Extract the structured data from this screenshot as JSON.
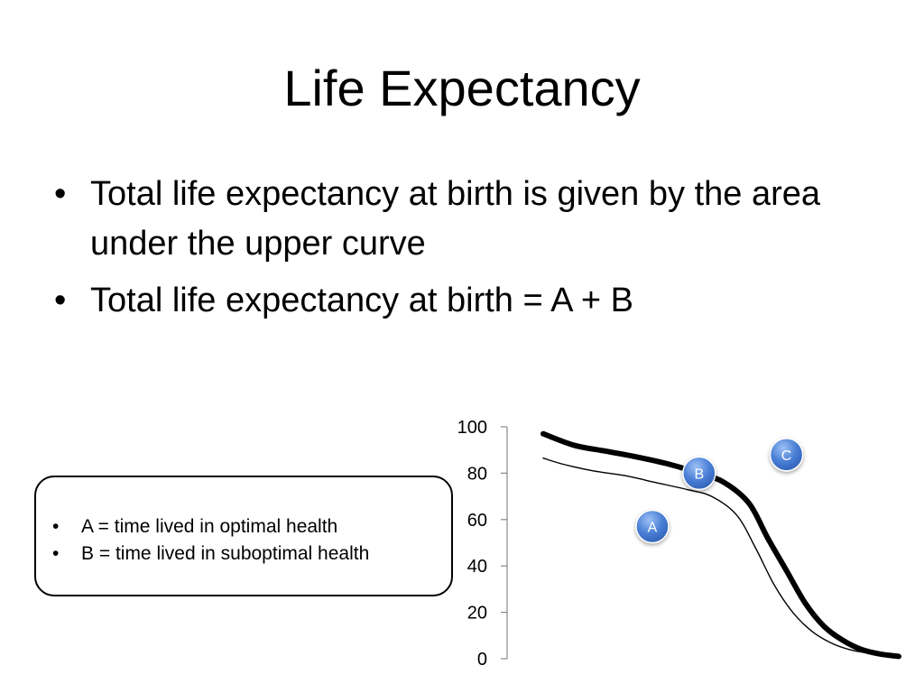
{
  "title": "Life Expectancy",
  "bullets": [
    {
      "marker": "•",
      "text": "Total life expectancy at birth is given by the area under the upper curve"
    },
    {
      "marker": "•",
      "text": "Total life expectancy at birth = A + B"
    }
  ],
  "legend_box": [
    {
      "marker": "•",
      "text": "A = time lived in optimal health"
    },
    {
      "marker": "•",
      "text": "B = time lived in suboptimal health"
    }
  ],
  "chart_data": {
    "type": "line",
    "ylim": [
      0,
      100
    ],
    "y_ticks": [
      "0",
      "20",
      "40",
      "60",
      "80",
      "100"
    ],
    "x_axis": "unlabeled",
    "grid": false,
    "series": [
      {
        "style": "thick",
        "points": [
          [
            0,
            97
          ],
          [
            5,
            92
          ],
          [
            10,
            89.5
          ],
          [
            15,
            87
          ],
          [
            20,
            84
          ],
          [
            25,
            80
          ],
          [
            29,
            76
          ],
          [
            33,
            67
          ],
          [
            36,
            52
          ],
          [
            39,
            38
          ],
          [
            42,
            24
          ],
          [
            45,
            14
          ],
          [
            48,
            8
          ],
          [
            51,
            4
          ],
          [
            54,
            2
          ],
          [
            57,
            1
          ]
        ]
      },
      {
        "style": "thin",
        "points": [
          [
            0,
            86.5
          ],
          [
            3,
            84
          ],
          [
            8,
            81
          ],
          [
            13,
            79
          ],
          [
            18,
            76
          ],
          [
            23,
            73
          ],
          [
            27,
            70
          ],
          [
            31,
            62
          ],
          [
            34,
            48
          ],
          [
            37,
            32
          ],
          [
            40,
            20
          ],
          [
            43,
            12
          ],
          [
            46,
            7
          ],
          [
            49,
            4
          ],
          [
            52,
            2.5
          ],
          [
            55,
            1.8
          ]
        ]
      }
    ],
    "regions": [
      {
        "label": "A",
        "x": 17.5,
        "y": 57
      },
      {
        "label": "B",
        "x": 25,
        "y": 80
      },
      {
        "label": "C",
        "x": 39,
        "y": 88
      }
    ],
    "colors": {
      "bubble": "#4a7fd6",
      "axis": "#888888",
      "line": "#000000"
    }
  }
}
